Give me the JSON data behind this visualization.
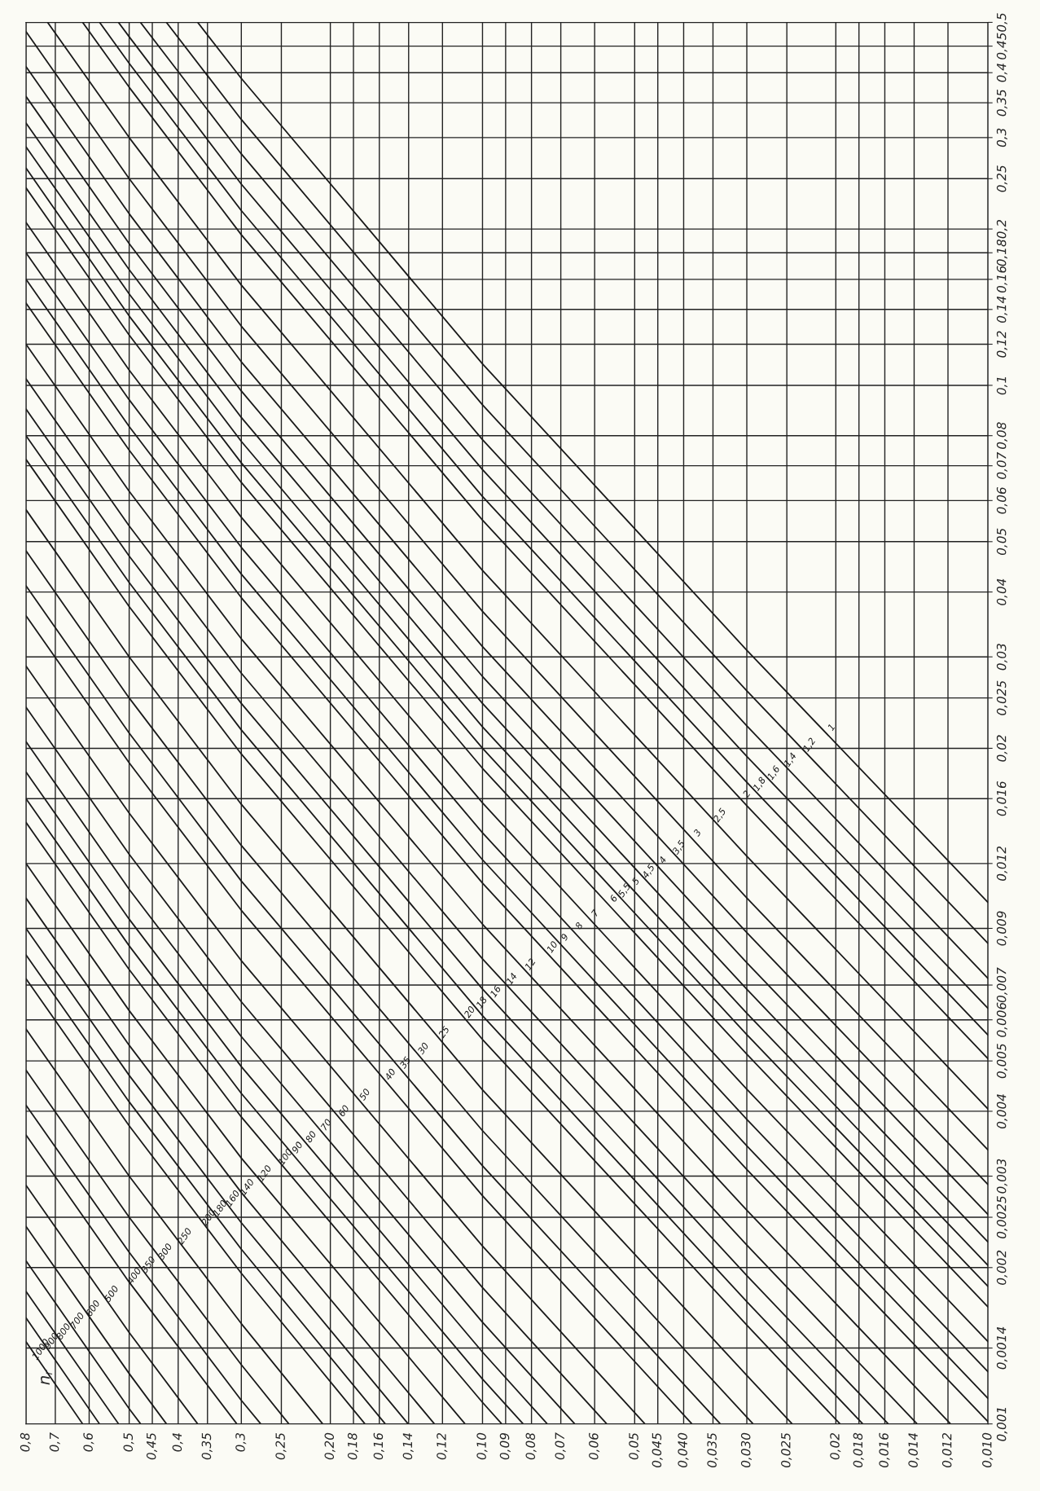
{
  "chart_data": {
    "type": "line",
    "legend_title": "n$_{r}$",
    "legend": false,
    "grid": true,
    "log": "xy",
    "line_style": "solid",
    "marker": "none",
    "xlim": [
      0.8,
      0.01
    ],
    "ylim": [
      0.001,
      0.5
    ],
    "xticks": [
      {
        "value": 0.8,
        "label": "0,8"
      },
      {
        "value": 0.7,
        "label": "0,7"
      },
      {
        "value": 0.6,
        "label": "0,6"
      },
      {
        "value": 0.5,
        "label": "0,5"
      },
      {
        "value": 0.45,
        "label": "0,45"
      },
      {
        "value": 0.4,
        "label": "0,4"
      },
      {
        "value": 0.35,
        "label": "0,35"
      },
      {
        "value": 0.3,
        "label": "0,3"
      },
      {
        "value": 0.25,
        "label": "0,25"
      },
      {
        "value": 0.2,
        "label": "0,20"
      },
      {
        "value": 0.18,
        "label": "0,18"
      },
      {
        "value": 0.16,
        "label": "0,16"
      },
      {
        "value": 0.14,
        "label": "0,14"
      },
      {
        "value": 0.12,
        "label": "0,12"
      },
      {
        "value": 0.1,
        "label": "0,10"
      },
      {
        "value": 0.09,
        "label": "0,09"
      },
      {
        "value": 0.08,
        "label": "0,08"
      },
      {
        "value": 0.07,
        "label": "0,07"
      },
      {
        "value": 0.06,
        "label": "0,06"
      },
      {
        "value": 0.05,
        "label": "0,05"
      },
      {
        "value": 0.045,
        "label": "0,045"
      },
      {
        "value": 0.04,
        "label": "0,040"
      },
      {
        "value": 0.035,
        "label": "0,035"
      },
      {
        "value": 0.03,
        "label": "0,030"
      },
      {
        "value": 0.025,
        "label": "0,025"
      },
      {
        "value": 0.02,
        "label": "0,02"
      },
      {
        "value": 0.018,
        "label": "0,018"
      },
      {
        "value": 0.016,
        "label": "0,016"
      },
      {
        "value": 0.014,
        "label": "0,014"
      },
      {
        "value": 0.012,
        "label": "0,012"
      },
      {
        "value": 0.01,
        "label": "0,010"
      }
    ],
    "yticks": [
      {
        "value": 0.001,
        "label": "0,001"
      },
      {
        "value": 0.0014,
        "label": "0,0014"
      },
      {
        "value": 0.002,
        "label": "0,002"
      },
      {
        "value": 0.0025,
        "label": "0,0025"
      },
      {
        "value": 0.003,
        "label": "0,003"
      },
      {
        "value": 0.004,
        "label": "0,004"
      },
      {
        "value": 0.005,
        "label": "0,005"
      },
      {
        "value": 0.006,
        "label": "0,006"
      },
      {
        "value": 0.007,
        "label": "0,007"
      },
      {
        "value": 0.009,
        "label": "0,009"
      },
      {
        "value": 0.012,
        "label": "0,012"
      },
      {
        "value": 0.016,
        "label": "0,016"
      },
      {
        "value": 0.02,
        "label": "0,02"
      },
      {
        "value": 0.025,
        "label": "0,025"
      },
      {
        "value": 0.03,
        "label": "0,03"
      },
      {
        "value": 0.04,
        "label": "0,04"
      },
      {
        "value": 0.05,
        "label": "0,05"
      },
      {
        "value": 0.06,
        "label": "0,06"
      },
      {
        "value": 0.07,
        "label": "0,07"
      },
      {
        "value": 0.08,
        "label": "0,08"
      },
      {
        "value": 0.1,
        "label": "0,1"
      },
      {
        "value": 0.12,
        "label": "0,12"
      },
      {
        "value": 0.14,
        "label": "0,14"
      },
      {
        "value": 0.16,
        "label": "0,16"
      },
      {
        "value": 0.18,
        "label": "0,18"
      },
      {
        "value": 0.2,
        "label": "0,2"
      },
      {
        "value": 0.25,
        "label": "0,25"
      },
      {
        "value": 0.3,
        "label": "0,3"
      },
      {
        "value": 0.35,
        "label": "0,35"
      },
      {
        "value": 0.4,
        "label": "0,4"
      },
      {
        "value": 0.45,
        "label": "0,45"
      },
      {
        "value": 0.5,
        "label": "0,5"
      }
    ],
    "series": [
      {
        "name": "1",
        "color": "#1a1a1a",
        "x": [
          0.01,
          0.03,
          0.1,
          0.3,
          0.366
        ],
        "values": [
          0.0101,
          0.0309,
          0.11,
          0.39,
          0.5
        ]
      },
      {
        "name": "1,2",
        "color": "#1a1a1a",
        "x": [
          0.01,
          0.03,
          0.1,
          0.3,
          0.422
        ],
        "values": [
          0.00842,
          0.0258,
          0.0917,
          0.325,
          0.5
        ]
      },
      {
        "name": "1,4",
        "color": "#1a1a1a",
        "x": [
          0.01,
          0.03,
          0.1,
          0.3,
          0.475
        ],
        "values": [
          0.00721,
          0.0221,
          0.0786,
          0.279,
          0.5
        ]
      },
      {
        "name": "1,6",
        "color": "#1a1a1a",
        "x": [
          0.01,
          0.03,
          0.1,
          0.3,
          0.5,
          0.525
        ],
        "values": [
          0.00631,
          0.0193,
          0.0688,
          0.244,
          0.469,
          0.5
        ]
      },
      {
        "name": "1,8",
        "color": "#1a1a1a",
        "x": [
          0.01,
          0.03,
          0.1,
          0.3,
          0.5,
          0.572
        ],
        "values": [
          0.00561,
          0.0172,
          0.0611,
          0.217,
          0.417,
          0.5
        ]
      },
      {
        "name": "2",
        "color": "#1a1a1a",
        "x": [
          0.01,
          0.03,
          0.1,
          0.3,
          0.5,
          0.618
        ],
        "values": [
          0.00505,
          0.0155,
          0.055,
          0.195,
          0.375,
          0.5
        ]
      },
      {
        "name": "2,5",
        "color": "#1a1a1a",
        "x": [
          0.01,
          0.03,
          0.1,
          0.3,
          0.5,
          0.725
        ],
        "values": [
          0.00404,
          0.0124,
          0.044,
          0.156,
          0.3,
          0.5
        ]
      },
      {
        "name": "3",
        "color": "#1a1a1a",
        "x": [
          0.01,
          0.03,
          0.1,
          0.3,
          0.5,
          0.8
        ],
        "values": [
          0.00337,
          0.0103,
          0.0367,
          0.13,
          0.25,
          0.48
        ]
      },
      {
        "name": "3,5",
        "color": "#1a1a1a",
        "x": [
          0.01,
          0.03,
          0.1,
          0.3,
          0.5,
          0.8
        ],
        "values": [
          0.00289,
          0.00883,
          0.0314,
          0.111,
          0.214,
          0.411
        ]
      },
      {
        "name": "4",
        "color": "#1a1a1a",
        "x": [
          0.01,
          0.03,
          0.1,
          0.3,
          0.5,
          0.8
        ],
        "values": [
          0.00253,
          0.00773,
          0.0275,
          0.0975,
          0.1875,
          0.36
        ]
      },
      {
        "name": "4,5",
        "color": "#1a1a1a",
        "x": [
          0.01,
          0.03,
          0.1,
          0.3,
          0.5,
          0.8
        ],
        "values": [
          0.00224,
          0.00687,
          0.0244,
          0.0867,
          0.167,
          0.32
        ]
      },
      {
        "name": "5",
        "color": "#1a1a1a",
        "x": [
          0.01,
          0.03,
          0.1,
          0.3,
          0.5,
          0.8
        ],
        "values": [
          0.00202,
          0.00618,
          0.022,
          0.078,
          0.15,
          0.288
        ]
      },
      {
        "name": "5,5",
        "color": "#1a1a1a",
        "x": [
          0.01,
          0.03,
          0.1,
          0.3,
          0.5,
          0.8
        ],
        "values": [
          0.00184,
          0.00562,
          0.02,
          0.0709,
          0.136,
          0.262
        ]
      },
      {
        "name": "6",
        "color": "#1a1a1a",
        "x": [
          0.01,
          0.03,
          0.1,
          0.3,
          0.5,
          0.8
        ],
        "values": [
          0.00168,
          0.00515,
          0.0183,
          0.065,
          0.125,
          0.24
        ]
      },
      {
        "name": "7",
        "color": "#1a1a1a",
        "x": [
          0.01,
          0.03,
          0.1,
          0.3,
          0.5,
          0.8
        ],
        "values": [
          0.00144,
          0.00441,
          0.0157,
          0.0557,
          0.107,
          0.206
        ]
      },
      {
        "name": "8",
        "color": "#1a1a1a",
        "x": [
          0.01,
          0.03,
          0.1,
          0.3,
          0.5,
          0.8
        ],
        "values": [
          0.00126,
          0.00386,
          0.01375,
          0.04875,
          0.0938,
          0.18
        ]
      },
      {
        "name": "9",
        "color": "#1a1a1a",
        "x": [
          0.01,
          0.03,
          0.1,
          0.3,
          0.5,
          0.8
        ],
        "values": [
          0.00112,
          0.00343,
          0.0122,
          0.0433,
          0.0833,
          0.16
        ]
      },
      {
        "name": "10",
        "color": "#1a1a1a",
        "x": [
          0.01,
          0.03,
          0.1,
          0.3,
          0.5,
          0.8
        ],
        "values": [
          0.00101,
          0.00309,
          0.011,
          0.039,
          0.075,
          0.144
        ]
      },
      {
        "name": "12",
        "color": "#1a1a1a",
        "x": [
          0.01186,
          0.03,
          0.1,
          0.3,
          0.5,
          0.8
        ],
        "values": [
          0.001,
          0.00258,
          0.00917,
          0.0325,
          0.0625,
          0.12
        ]
      },
      {
        "name": "14",
        "color": "#1a1a1a",
        "x": [
          0.01381,
          0.03,
          0.1,
          0.3,
          0.5,
          0.8
        ],
        "values": [
          0.001,
          0.00221,
          0.00786,
          0.0279,
          0.0536,
          0.1029
        ]
      },
      {
        "name": "16",
        "color": "#1a1a1a",
        "x": [
          0.01575,
          0.03,
          0.1,
          0.3,
          0.5,
          0.8
        ],
        "values": [
          0.001,
          0.00193,
          0.00688,
          0.0244,
          0.0469,
          0.09
        ]
      },
      {
        "name": "18",
        "color": "#1a1a1a",
        "x": [
          0.01769,
          0.03,
          0.1,
          0.3,
          0.5,
          0.8
        ],
        "values": [
          0.001,
          0.00172,
          0.00611,
          0.0217,
          0.0417,
          0.08
        ]
      },
      {
        "name": "20",
        "color": "#1a1a1a",
        "x": [
          0.01962,
          0.03,
          0.1,
          0.3,
          0.5,
          0.8
        ],
        "values": [
          0.001,
          0.00155,
          0.0055,
          0.0195,
          0.0375,
          0.072
        ]
      },
      {
        "name": "25",
        "color": "#1a1a1a",
        "x": [
          0.0244,
          0.03,
          0.1,
          0.3,
          0.5,
          0.8
        ],
        "values": [
          0.001,
          0.00124,
          0.0044,
          0.0156,
          0.03,
          0.0576
        ]
      },
      {
        "name": "30",
        "color": "#1a1a1a",
        "x": [
          0.02915,
          0.03,
          0.1,
          0.3,
          0.5,
          0.8
        ],
        "values": [
          0.001,
          0.00103,
          0.00367,
          0.013,
          0.025,
          0.048
        ]
      },
      {
        "name": "35",
        "color": "#1a1a1a",
        "x": [
          0.03385,
          0.1,
          0.3,
          0.5,
          0.8
        ],
        "values": [
          0.001,
          0.00314,
          0.0111,
          0.0214,
          0.0411
        ]
      },
      {
        "name": "40",
        "color": "#1a1a1a",
        "x": [
          0.03852,
          0.1,
          0.3,
          0.5,
          0.8
        ],
        "values": [
          0.001,
          0.00275,
          0.00975,
          0.01875,
          0.036
        ]
      },
      {
        "name": "50",
        "color": "#1a1a1a",
        "x": [
          0.04772,
          0.1,
          0.3,
          0.5,
          0.8
        ],
        "values": [
          0.001,
          0.0022,
          0.0078,
          0.015,
          0.0288
        ]
      },
      {
        "name": "60",
        "color": "#1a1a1a",
        "x": [
          0.05678,
          0.1,
          0.3,
          0.5,
          0.8
        ],
        "values": [
          0.001,
          0.00183,
          0.0065,
          0.0125,
          0.024
        ]
      },
      {
        "name": "70",
        "color": "#1a1a1a",
        "x": [
          0.06569,
          0.1,
          0.3,
          0.5,
          0.8
        ],
        "values": [
          0.001,
          0.00157,
          0.00557,
          0.0107,
          0.0206
        ]
      },
      {
        "name": "80",
        "color": "#1a1a1a",
        "x": [
          0.07446,
          0.1,
          0.3,
          0.5,
          0.8
        ],
        "values": [
          0.001,
          0.001375,
          0.004875,
          0.009375,
          0.018
        ]
      },
      {
        "name": "90",
        "color": "#1a1a1a",
        "x": [
          0.0831,
          0.1,
          0.3,
          0.5,
          0.8
        ],
        "values": [
          0.001,
          0.00122,
          0.00433,
          0.00833,
          0.016
        ]
      },
      {
        "name": "100",
        "color": "#1a1a1a",
        "x": [
          0.09161,
          0.1,
          0.3,
          0.5,
          0.8
        ],
        "values": [
          0.001,
          0.0011,
          0.0039,
          0.0075,
          0.0144
        ]
      },
      {
        "name": "120",
        "color": "#1a1a1a",
        "x": [
          0.10828,
          0.3,
          0.5,
          0.8
        ],
        "values": [
          0.001,
          0.00325,
          0.00625,
          0.012
        ]
      },
      {
        "name": "140",
        "color": "#1a1a1a",
        "x": [
          0.1245,
          0.3,
          0.5,
          0.8
        ],
        "values": [
          0.001,
          0.00279,
          0.00536,
          0.01029
        ]
      },
      {
        "name": "160",
        "color": "#1a1a1a",
        "x": [
          0.14031,
          0.3,
          0.5,
          0.8
        ],
        "values": [
          0.001,
          0.00244,
          0.00469,
          0.009
        ]
      },
      {
        "name": "180",
        "color": "#1a1a1a",
        "x": [
          0.15574,
          0.3,
          0.5,
          0.8
        ],
        "values": [
          0.001,
          0.00217,
          0.00417,
          0.008
        ]
      },
      {
        "name": "200",
        "color": "#1a1a1a",
        "x": [
          0.17082,
          0.3,
          0.5,
          0.8
        ],
        "values": [
          0.001,
          0.00195,
          0.00375,
          0.0072
        ]
      },
      {
        "name": "250",
        "color": "#1a1a1a",
        "x": [
          0.20711,
          0.3,
          0.5,
          0.8
        ],
        "values": [
          0.001,
          0.00156,
          0.003,
          0.00576
        ]
      },
      {
        "name": "300",
        "color": "#1a1a1a",
        "x": [
          0.24162,
          0.3,
          0.5,
          0.8
        ],
        "values": [
          0.001,
          0.0013,
          0.0025,
          0.0048
        ]
      },
      {
        "name": "350",
        "color": "#1a1a1a",
        "x": [
          0.2746,
          0.3,
          0.5,
          0.8
        ],
        "values": [
          0.001,
          0.00111,
          0.00214,
          0.00411
        ]
      },
      {
        "name": "400",
        "color": "#1a1a1a",
        "x": [
          0.30623,
          0.5,
          0.8
        ],
        "values": [
          0.001,
          0.001875,
          0.0036
        ]
      },
      {
        "name": "500",
        "color": "#1a1a1a",
        "x": [
          0.36603,
          0.5,
          0.8
        ],
        "values": [
          0.001,
          0.0015,
          0.00288
        ]
      },
      {
        "name": "600",
        "color": "#1a1a1a",
        "x": [
          0.42195,
          0.5,
          0.8
        ],
        "values": [
          0.001,
          0.00125,
          0.0024
        ]
      },
      {
        "name": "700",
        "color": "#1a1a1a",
        "x": [
          0.47468,
          0.5,
          0.8
        ],
        "values": [
          0.001,
          0.00107,
          0.00206
        ]
      },
      {
        "name": "800",
        "color": "#1a1a1a",
        "x": [
          0.5247,
          0.8
        ],
        "values": [
          0.001,
          0.0018
        ]
      },
      {
        "name": "900",
        "color": "#1a1a1a",
        "x": [
          0.57238,
          0.8
        ],
        "values": [
          0.001,
          0.0016
        ]
      },
      {
        "name": "1000",
        "color": "#1a1a1a",
        "x": [
          0.61803,
          0.8
        ],
        "values": [
          0.001,
          0.00144
        ]
      }
    ]
  }
}
